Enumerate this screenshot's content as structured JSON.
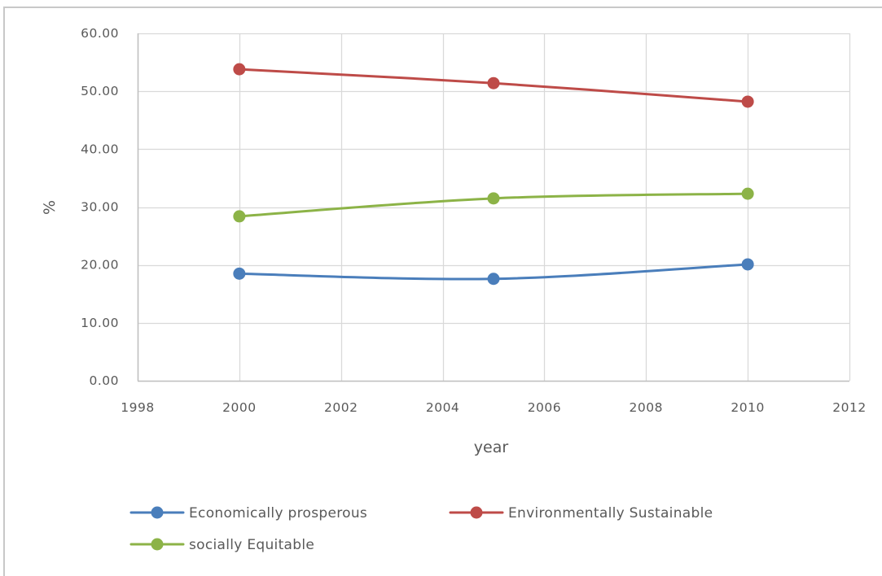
{
  "chart_data": {
    "type": "line",
    "title": "",
    "xlabel": "year",
    "ylabel": "%",
    "xlim": [
      1998,
      2012
    ],
    "ylim": [
      0,
      60
    ],
    "x_ticks": [
      1998,
      2000,
      2002,
      2004,
      2006,
      2008,
      2010,
      2012
    ],
    "x_tick_labels": [
      "1998",
      "2000",
      "2002",
      "2004",
      "2006",
      "2008",
      "2010",
      "2012"
    ],
    "y_ticks": [
      0,
      10,
      20,
      30,
      40,
      50,
      60
    ],
    "y_tick_labels": [
      "0.00",
      "10.00",
      "20.00",
      "30.00",
      "40.00",
      "50.00",
      "60.00"
    ],
    "grid": true,
    "smooth": true,
    "legend_position": "bottom",
    "x": [
      2000,
      2005,
      2010
    ],
    "series": [
      {
        "name": "Economically prosperous",
        "color": "#4a7ebb",
        "values": [
          18.5,
          17.6,
          20.1
        ]
      },
      {
        "name": "Environmentally Sustainable",
        "color": "#be4b48",
        "values": [
          53.8,
          51.4,
          48.2
        ]
      },
      {
        "name": "socially Equitable",
        "color": "#8cb347",
        "values": [
          28.4,
          31.5,
          32.3
        ]
      }
    ]
  }
}
